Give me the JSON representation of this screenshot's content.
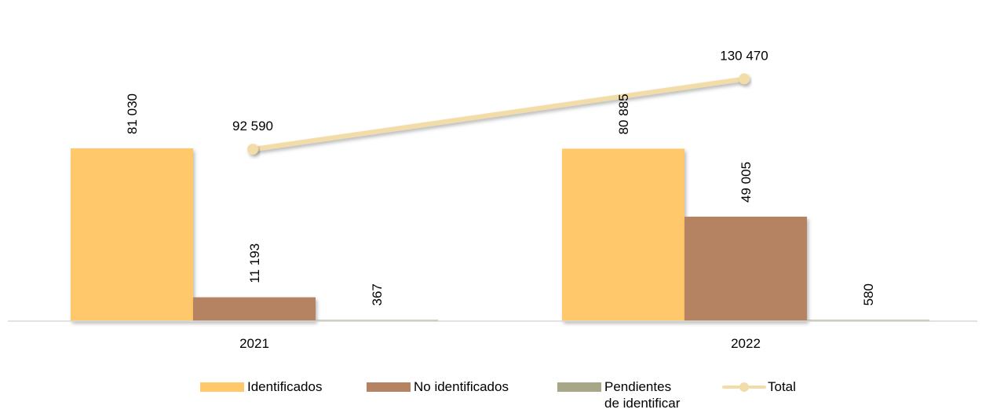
{
  "chart_data": {
    "type": "bar",
    "categories": [
      "2021",
      "2022"
    ],
    "series": [
      {
        "name": "Identificados",
        "type": "bar",
        "values": [
          81030,
          80885
        ],
        "labels": [
          "81 030",
          "80 885"
        ],
        "color": "#FFC86B"
      },
      {
        "name": "No identificados",
        "type": "bar",
        "values": [
          11193,
          49005
        ],
        "labels": [
          "11 193",
          "49 005"
        ],
        "color": "#B58262"
      },
      {
        "name": "Pendientes de identificar",
        "type": "bar",
        "values": [
          367,
          580
        ],
        "labels": [
          "367",
          "580"
        ],
        "color": "#A7A787"
      },
      {
        "name": "Total",
        "type": "line",
        "values": [
          92590,
          130470
        ],
        "labels": [
          "92 590",
          "130 470"
        ],
        "color": "#F2DCA8"
      }
    ],
    "legend": {
      "position": "bottom",
      "items": [
        {
          "label": "Identificados",
          "color": "#FFC86B",
          "kind": "bar"
        },
        {
          "label_line1": "No identificados",
          "color": "#B58262",
          "kind": "bar"
        },
        {
          "label_line1": "Pendientes",
          "label_line2": "de identificar",
          "color": "#A7A787",
          "kind": "bar"
        },
        {
          "label": "Total",
          "color": "#F2DCA8",
          "kind": "line"
        }
      ]
    },
    "bar_ylim": [
      0,
      81030
    ],
    "line_ylim": [
      0,
      173000
    ],
    "grid": false
  }
}
